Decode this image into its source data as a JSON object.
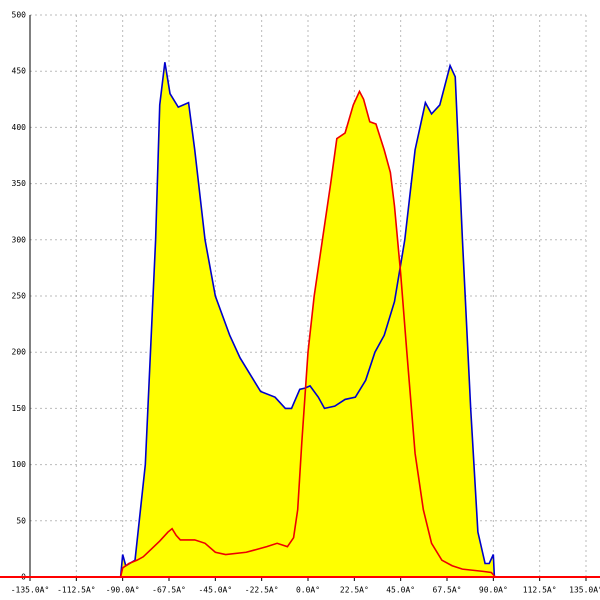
{
  "chart_data": {
    "type": "area",
    "fill_color": "#ffff00",
    "x_axis_color": "#ff0000",
    "grid": true,
    "xlim": [
      -135,
      135
    ],
    "ylim": [
      0,
      500
    ],
    "xticks": [
      {
        "value": -135,
        "label": "-135.0A°"
      },
      {
        "value": -112.5,
        "label": "-112.5A°"
      },
      {
        "value": -90,
        "label": "-90.0A°"
      },
      {
        "value": -67.5,
        "label": "-67.5A°"
      },
      {
        "value": -45,
        "label": "-45.0A°"
      },
      {
        "value": -22.5,
        "label": "-22.5A°"
      },
      {
        "value": 0,
        "label": "0.0A°"
      },
      {
        "value": 22.5,
        "label": "22.5A°"
      },
      {
        "value": 45,
        "label": "45.0A°"
      },
      {
        "value": 67.5,
        "label": "67.5A°"
      },
      {
        "value": 90,
        "label": "90.0A°"
      },
      {
        "value": 112.5,
        "label": "112.5A°"
      },
      {
        "value": 135,
        "label": "135.0A°"
      }
    ],
    "yticks": [
      0,
      50,
      100,
      150,
      200,
      250,
      300,
      350,
      400,
      450,
      500
    ],
    "series": [
      {
        "color": "#0000cc",
        "x": [
          -91,
          -90,
          -88.5,
          -84,
          -79,
          -74,
          -72,
          -69.5,
          -67,
          -63,
          -58,
          -55,
          -50,
          -45,
          -38,
          -33,
          -28,
          -23,
          -16,
          -11,
          -8,
          -4,
          -1.5,
          1,
          5,
          8,
          13,
          18,
          23,
          28,
          32.5,
          37,
          42,
          47,
          52,
          57,
          60,
          64,
          69,
          71.5,
          75,
          79,
          82.5,
          86,
          88,
          90,
          90.5
        ],
        "values": [
          0,
          20,
          10,
          15,
          100,
          300,
          420,
          458,
          430,
          418,
          422,
          380,
          300,
          250,
          215,
          195,
          180,
          165,
          160,
          150,
          150,
          167,
          168,
          170,
          160,
          150,
          152,
          158,
          160,
          175,
          200,
          215,
          245,
          300,
          380,
          422,
          412,
          420,
          455,
          445,
          300,
          150,
          40,
          12,
          12,
          20,
          0
        ]
      },
      {
        "color": "#ee0000",
        "x": [
          -91,
          -90,
          -87,
          -83,
          -80,
          -76,
          -72,
          -68,
          -66,
          -64,
          -62,
          -55,
          -50,
          -45,
          -40,
          -30,
          -20,
          -15,
          -10,
          -7,
          -5,
          -3,
          0,
          3,
          7,
          11,
          14,
          18,
          22,
          25,
          27,
          30,
          33,
          37,
          40,
          42,
          45,
          48,
          52,
          56,
          60,
          65,
          70,
          75,
          80,
          85,
          89,
          90,
          91
        ],
        "values": [
          0,
          8,
          12,
          15,
          18,
          25,
          32,
          40,
          43,
          37,
          33,
          33,
          30,
          22,
          20,
          22,
          27,
          30,
          27,
          35,
          60,
          120,
          200,
          250,
          300,
          350,
          390,
          395,
          420,
          432,
          425,
          405,
          403,
          380,
          360,
          330,
          270,
          200,
          110,
          60,
          30,
          15,
          10,
          7,
          6,
          5,
          4,
          2,
          0
        ]
      }
    ]
  }
}
